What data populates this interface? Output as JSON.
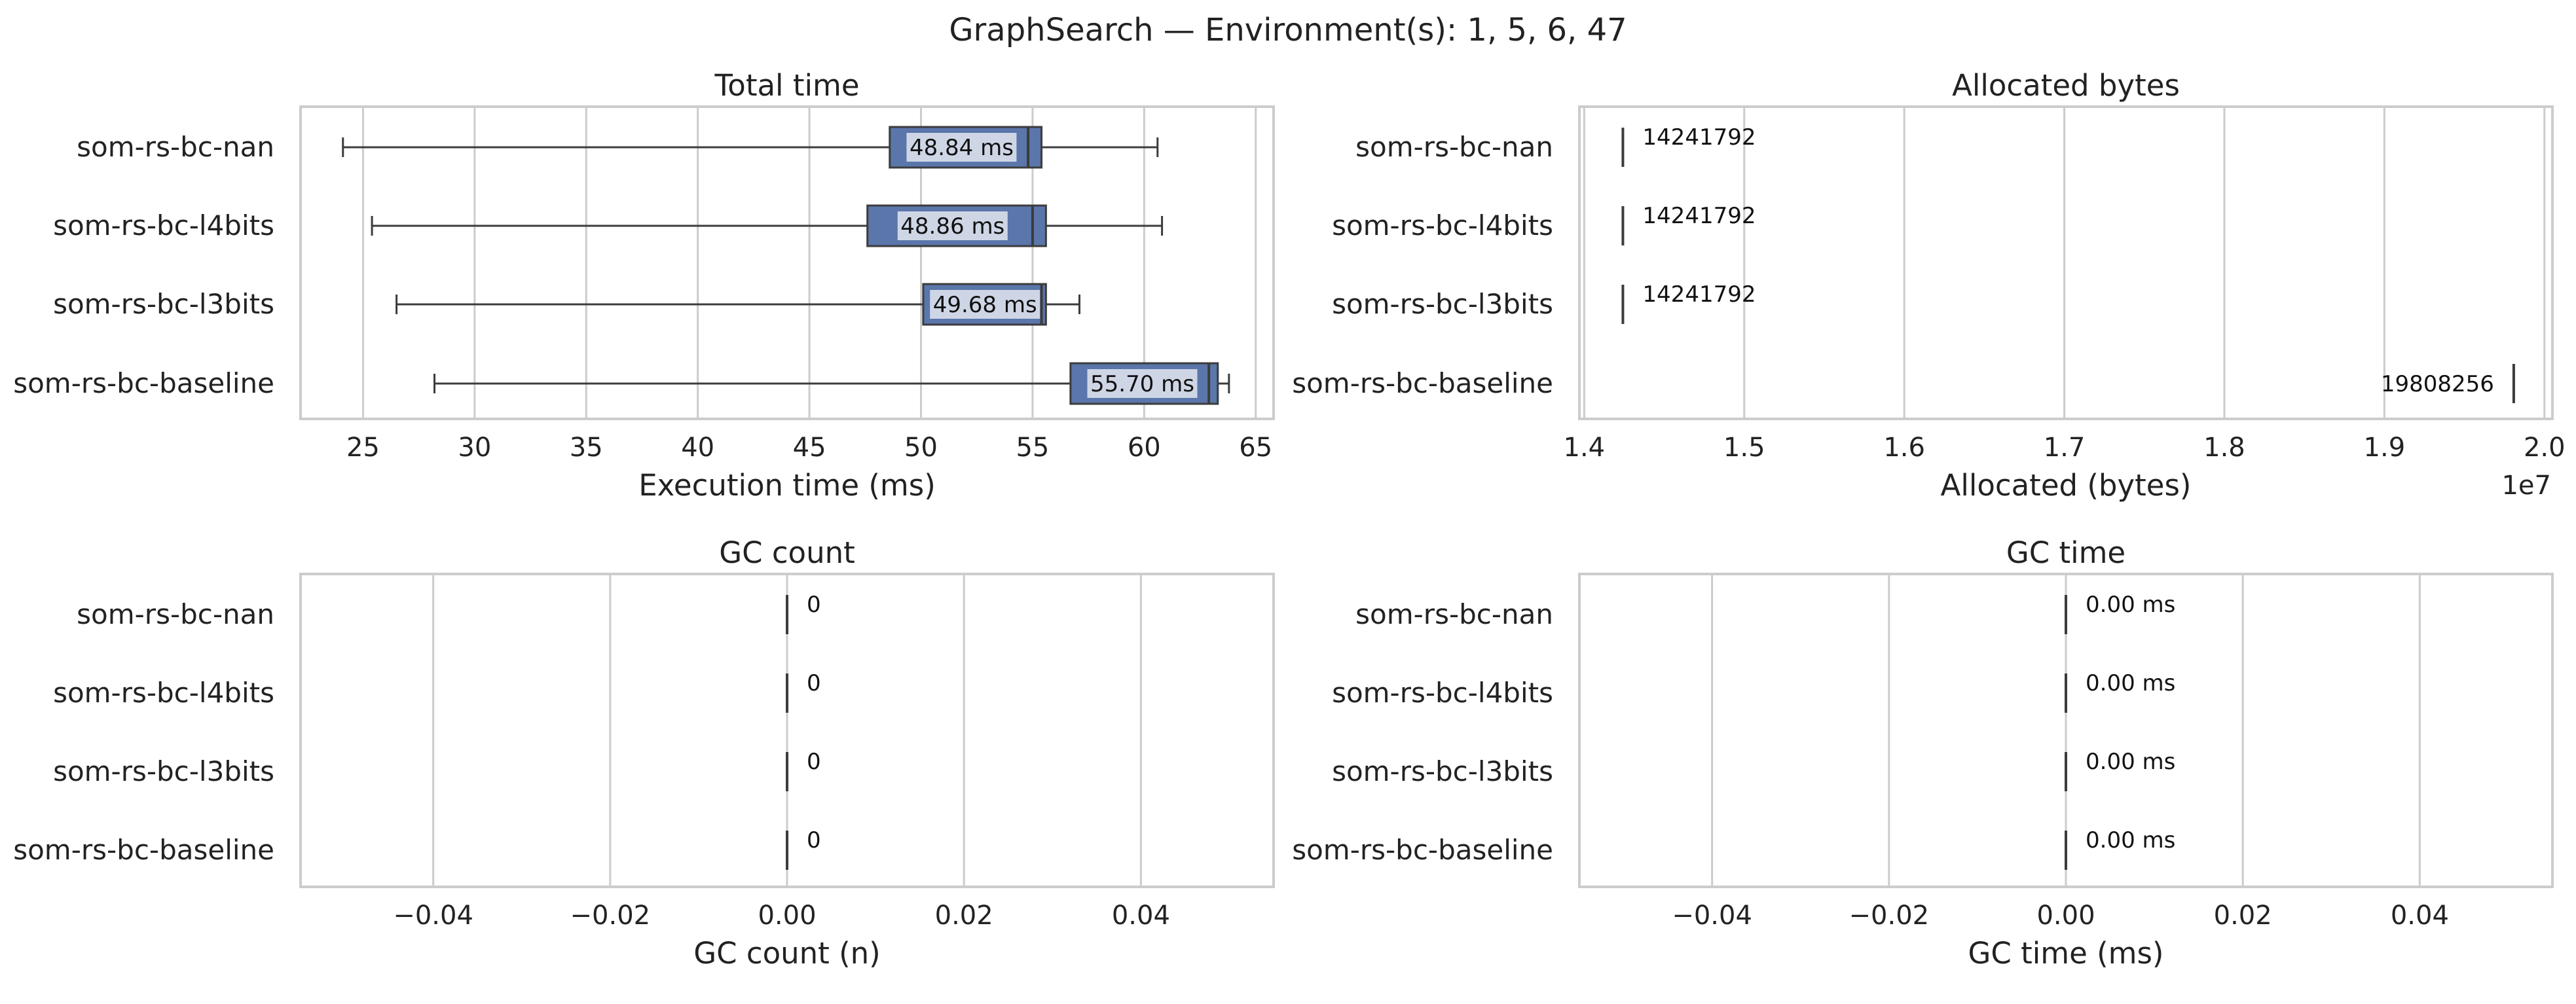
{
  "figure": {
    "title": "GraphSearch — Environment(s): 1, 5, 6, 47"
  },
  "chart_data": [
    {
      "type": "box",
      "title": "Total time",
      "xlabel": "Execution time (ms)",
      "ylabel": "",
      "xlim": [
        22.2,
        65.8
      ],
      "xticks": [
        25,
        30,
        35,
        40,
        45,
        50,
        55,
        60,
        65
      ],
      "grid": true,
      "categories": [
        "som-rs-bc-nan",
        "som-rs-bc-l4bits",
        "som-rs-bc-l3bits",
        "som-rs-bc-baseline"
      ],
      "boxes": [
        {
          "whisker_low": 24.1,
          "q1": 48.6,
          "median": 54.8,
          "q3": 55.4,
          "whisker_high": 60.6,
          "label": "48.84 ms"
        },
        {
          "whisker_low": 25.4,
          "q1": 47.6,
          "median": 55.0,
          "q3": 55.6,
          "whisker_high": 60.8,
          "label": "48.86 ms"
        },
        {
          "whisker_low": 26.5,
          "q1": 50.1,
          "median": 55.4,
          "q3": 55.6,
          "whisker_high": 57.1,
          "label": "49.68 ms"
        },
        {
          "whisker_low": 28.2,
          "q1": 56.7,
          "median": 62.9,
          "q3": 63.3,
          "whisker_high": 63.8,
          "label": "55.70 ms"
        }
      ],
      "box_color": "#5a76ab"
    },
    {
      "type": "box",
      "title": "Allocated bytes",
      "xlabel": "Allocated (bytes)",
      "ylabel": "",
      "xlim": [
        13970000,
        20050000
      ],
      "xticks": [
        14000000,
        15000000,
        16000000,
        17000000,
        18000000,
        19000000,
        20000000
      ],
      "xtick_labels": [
        "1.4",
        "1.5",
        "1.6",
        "1.7",
        "1.8",
        "1.9",
        "2.0"
      ],
      "offset_text": "1e7",
      "grid": true,
      "categories": [
        "som-rs-bc-nan",
        "som-rs-bc-l4bits",
        "som-rs-bc-l3bits",
        "som-rs-bc-baseline"
      ],
      "values": [
        14241792,
        14241792,
        14241792,
        19808256
      ],
      "labels": [
        "14241792",
        "14241792",
        "14241792",
        "19808256"
      ]
    },
    {
      "type": "box",
      "title": "GC count",
      "xlabel": "GC count (n)",
      "ylabel": "",
      "xlim": [
        -0.055,
        0.055
      ],
      "xticks": [
        -0.04,
        -0.02,
        0.0,
        0.02,
        0.04
      ],
      "xtick_labels": [
        "−0.04",
        "−0.02",
        "0.00",
        "0.02",
        "0.04"
      ],
      "grid": true,
      "categories": [
        "som-rs-bc-nan",
        "som-rs-bc-l4bits",
        "som-rs-bc-l3bits",
        "som-rs-bc-baseline"
      ],
      "values": [
        0,
        0,
        0,
        0
      ],
      "labels": [
        "0",
        "0",
        "0",
        "0"
      ]
    },
    {
      "type": "box",
      "title": "GC time",
      "xlabel": "GC time (ms)",
      "ylabel": "",
      "xlim": [
        -0.055,
        0.055
      ],
      "xticks": [
        -0.04,
        -0.02,
        0.0,
        0.02,
        0.04
      ],
      "xtick_labels": [
        "−0.04",
        "−0.02",
        "0.00",
        "0.02",
        "0.04"
      ],
      "grid": true,
      "categories": [
        "som-rs-bc-nan",
        "som-rs-bc-l4bits",
        "som-rs-bc-l3bits",
        "som-rs-bc-baseline"
      ],
      "values": [
        0,
        0,
        0,
        0
      ],
      "labels": [
        "0.00 ms",
        "0.00 ms",
        "0.00 ms",
        "0.00 ms"
      ]
    }
  ]
}
